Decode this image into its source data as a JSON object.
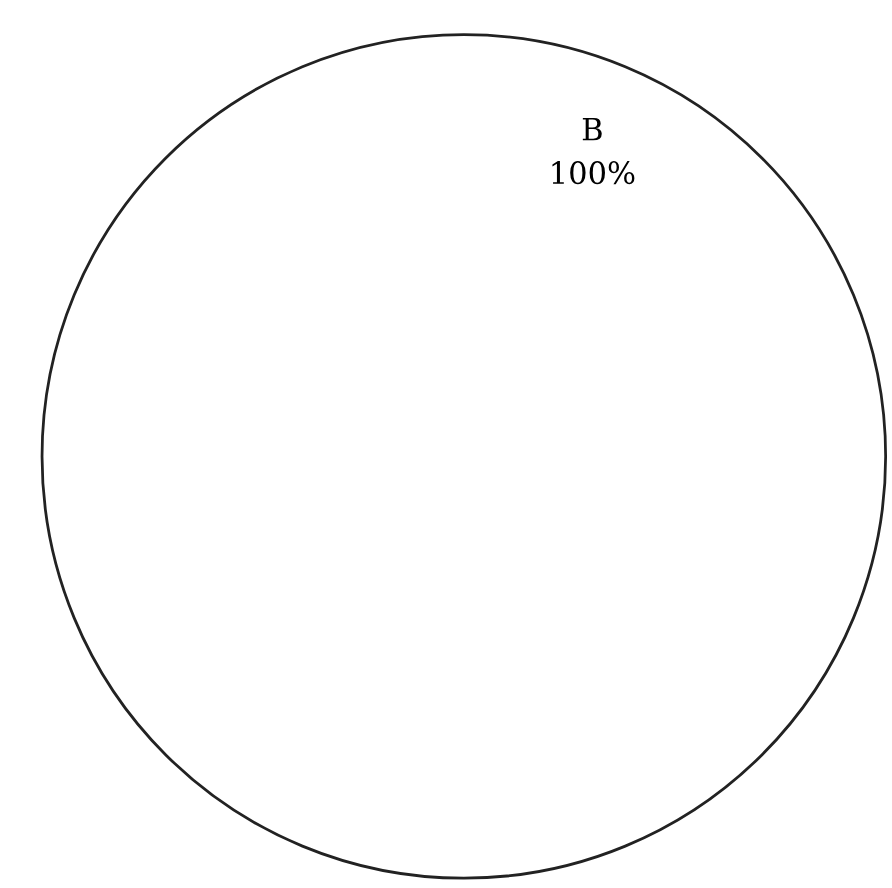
{
  "chart_data": {
    "type": "pie",
    "categories": [
      "B"
    ],
    "values": [
      100
    ],
    "colors": [
      "#ffffff"
    ],
    "value_labels": [
      "100%"
    ]
  }
}
